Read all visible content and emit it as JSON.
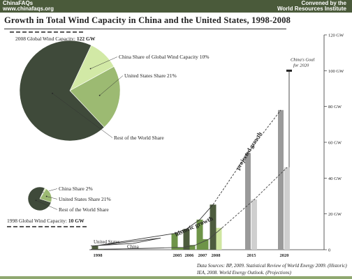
{
  "header": {
    "left_line1": "ChinaFAQs",
    "left_line2": "www.chinafaqs.org",
    "right_line1": "Convened by the",
    "right_line2": "World Resources Institute"
  },
  "title": "Growth in Total Wind Capacity in China and the United States, 1998-2008",
  "source_note": "Data Sources: BP, 2009. Statistical Review of World Energy 2009. (Historic) IEA, 2008. World Energy Outlook. (Projections)",
  "colors": {
    "header_bg": "#4a5a3a",
    "dark_green": "#4d5c3e",
    "mid_green": "#6e9448",
    "light_green": "#cfe6a0",
    "rest_of_world": "#3f4a3a",
    "us_share": "#9cba72",
    "china_share": "#d2e9a6",
    "projection_dark": "#9a9a9a",
    "projection_light": "#cfcfcf"
  },
  "chart_data": [
    {
      "type": "pie",
      "title": "2008 Global Wind Capacity: 122 GW",
      "title_prefix": "2008 Global Wind Capacity:",
      "title_value": "122 GW",
      "slices": [
        {
          "label": "China Share of Global Wind Capacity 10%",
          "value": 10
        },
        {
          "label": "United States Share 21%",
          "value": 21
        },
        {
          "label": "Rest of the World Share",
          "value": 69
        }
      ]
    },
    {
      "type": "pie",
      "title": "1998 Global Wind Capacity: 10 GW",
      "title_prefix": "1998 Global Wind Capacity:",
      "title_value": "10 GW",
      "slices": [
        {
          "label": "China Share 2%",
          "value": 2
        },
        {
          "label": "United States Share 21%",
          "value": 21
        },
        {
          "label": "Rest of the World Share",
          "value": 77
        }
      ]
    },
    {
      "type": "bar",
      "ylim": [
        0,
        120
      ],
      "yticks": [
        "0",
        "20 GW",
        "40 GW",
        "60 GW",
        "80 GW",
        "100 GW",
        "120 GW"
      ],
      "ytick_values": [
        0,
        20,
        40,
        60,
        80,
        100,
        120
      ],
      "x_labels": [
        "1998",
        "2005",
        "2006",
        "2007",
        "2008",
        "2015",
        "2020"
      ],
      "historic": [
        {
          "year": "1998",
          "us": 2.1,
          "china": 0.2
        },
        {
          "year": "2005",
          "us": 9.1,
          "china": 1.3
        },
        {
          "year": "2006",
          "us": 11.6,
          "china": 2.6
        },
        {
          "year": "2007",
          "us": 16.8,
          "china": 5.9
        },
        {
          "year": "2008",
          "us": 25.2,
          "china": 12.2
        }
      ],
      "projected": [
        {
          "year": "2015",
          "us": 54,
          "china": 28
        },
        {
          "year": "2020",
          "us": 78,
          "china": 46
        }
      ],
      "goal": {
        "year": "2020",
        "value": 100,
        "label_line1": "China's Goal",
        "label_line2": "for 2020"
      },
      "series_labels": {
        "us": "United States",
        "china": "China"
      },
      "annotations": {
        "historic": "historic growth",
        "projected": "projected growth"
      }
    }
  ]
}
